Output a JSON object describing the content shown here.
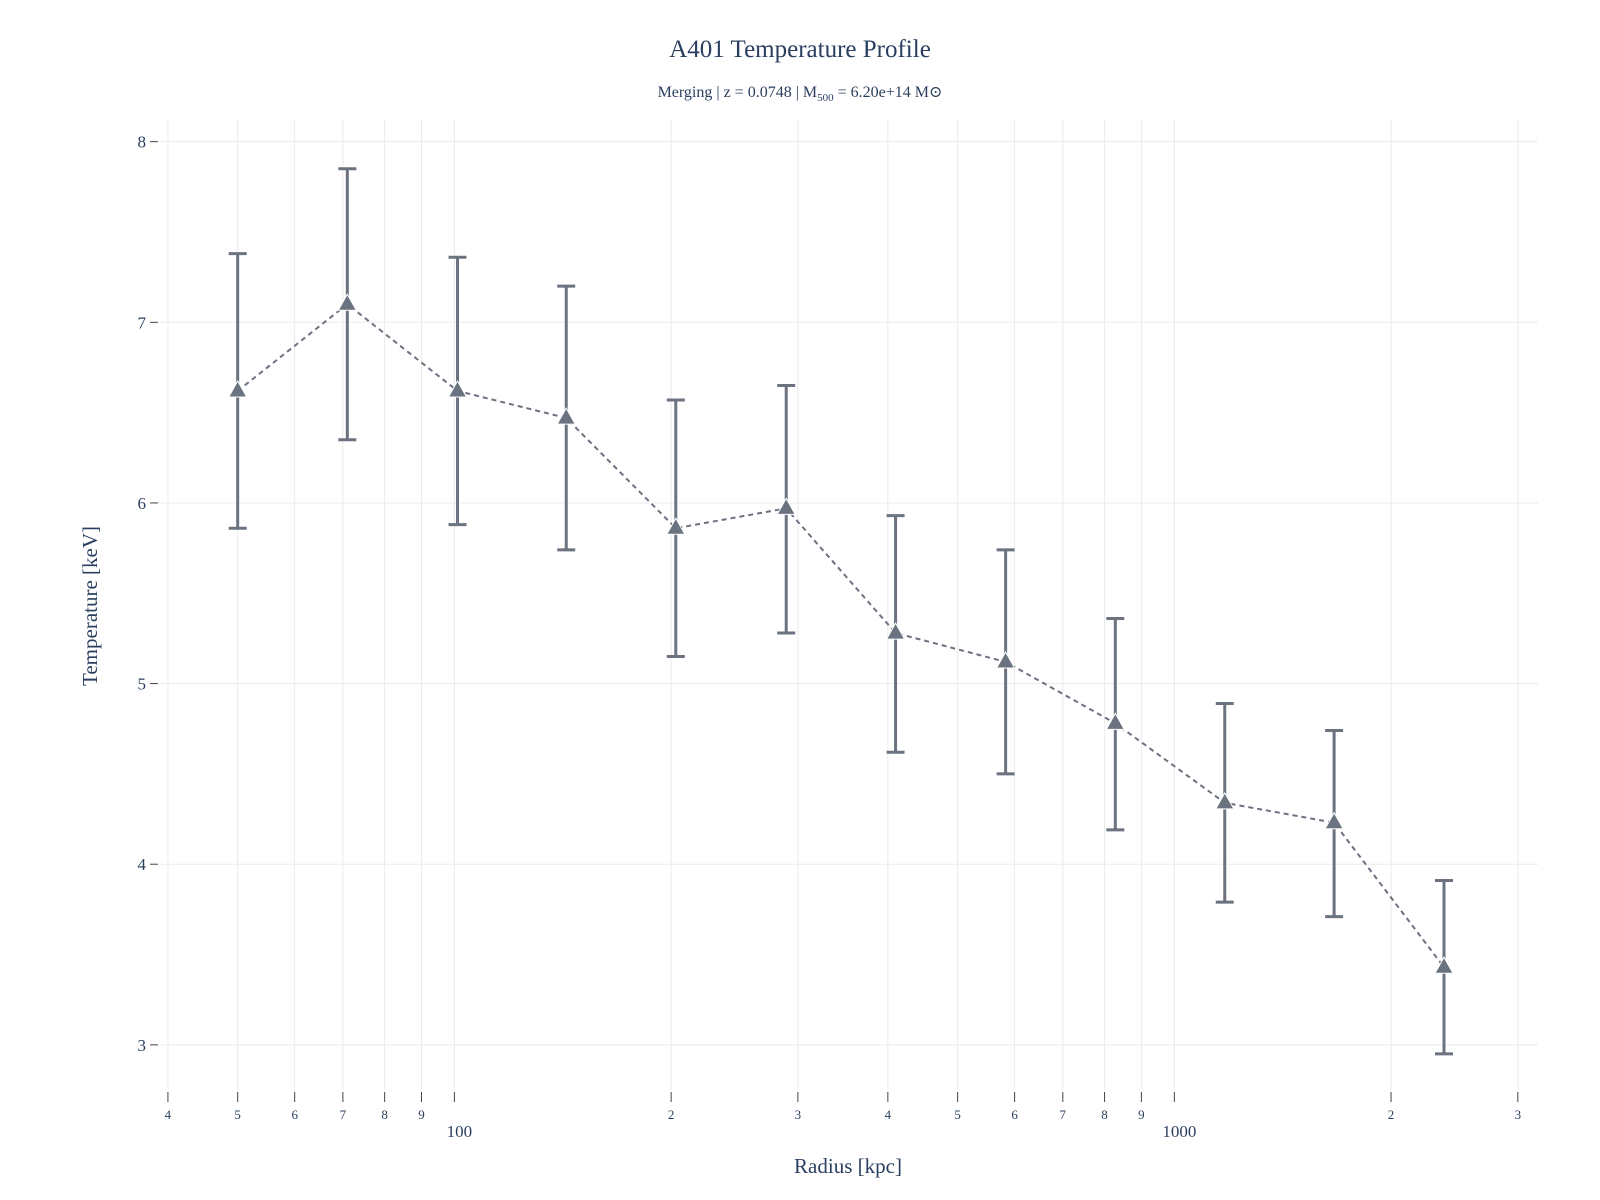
{
  "chart_data": {
    "type": "scatter",
    "title": "A401 Temperature Profile",
    "subtitle": {
      "prefix": "Merging | z = 0.0748 | M",
      "sub": "500",
      "middle": " = 6.20e+14 M",
      "suffix": "⊙"
    },
    "xlabel": "Radius [kpc]",
    "ylabel": "Temperature [keV]",
    "x_scale": "log",
    "xlim": [
      39,
      3200
    ],
    "ylim": [
      2.75,
      8.12
    ],
    "grid": true,
    "line_style": "dashed",
    "marker": "triangle-up",
    "color": "#6b7280",
    "y_ticks": [
      {
        "value": 3,
        "label": "3"
      },
      {
        "value": 4,
        "label": "4"
      },
      {
        "value": 5,
        "label": "5"
      },
      {
        "value": 6,
        "label": "6"
      },
      {
        "value": 7,
        "label": "7"
      },
      {
        "value": 8,
        "label": "8"
      }
    ],
    "x_ticks": [
      {
        "value": 40,
        "label": "4"
      },
      {
        "value": 50,
        "label": "5"
      },
      {
        "value": 60,
        "label": "6"
      },
      {
        "value": 70,
        "label": "7"
      },
      {
        "value": 80,
        "label": "8"
      },
      {
        "value": 90,
        "label": "9"
      },
      {
        "value": 100,
        "label": "100",
        "major": true
      },
      {
        "value": 200,
        "label": "2"
      },
      {
        "value": 300,
        "label": "3"
      },
      {
        "value": 400,
        "label": "4"
      },
      {
        "value": 500,
        "label": "5"
      },
      {
        "value": 600,
        "label": "6"
      },
      {
        "value": 700,
        "label": "7"
      },
      {
        "value": 800,
        "label": "8"
      },
      {
        "value": 900,
        "label": "9"
      },
      {
        "value": 1000,
        "label": "1000",
        "major": true
      },
      {
        "value": 2000,
        "label": "2"
      },
      {
        "value": 3000,
        "label": "3"
      }
    ],
    "series": [
      {
        "x": [
          50,
          71,
          101,
          143,
          203,
          289,
          410,
          583,
          828,
          1175,
          1667,
          2369
        ],
        "y": [
          6.62,
          7.1,
          6.62,
          6.47,
          5.86,
          5.97,
          5.28,
          5.12,
          4.78,
          4.34,
          4.23,
          3.43
        ],
        "error_minus": [
          0.76,
          0.75,
          0.74,
          0.73,
          0.71,
          0.69,
          0.66,
          0.62,
          0.59,
          0.55,
          0.52,
          0.48
        ],
        "error_plus": [
          0.76,
          0.75,
          0.74,
          0.73,
          0.71,
          0.68,
          0.65,
          0.62,
          0.58,
          0.55,
          0.51,
          0.48
        ]
      }
    ]
  }
}
